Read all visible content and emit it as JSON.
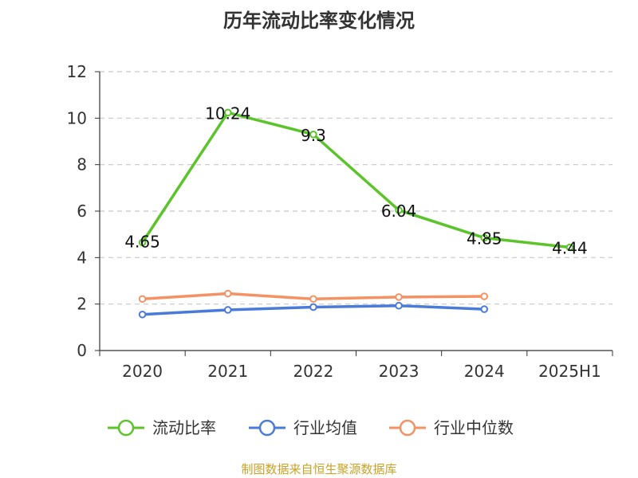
{
  "chart_data": {
    "type": "line",
    "title": "历年流动比率变化情况",
    "categories": [
      "2020",
      "2021",
      "2022",
      "2023",
      "2024",
      "2025H1"
    ],
    "ylim": [
      0,
      12
    ],
    "yticks": [
      "0",
      "2",
      "4",
      "6",
      "8",
      "10",
      "12"
    ],
    "grid": true,
    "legend_position": "bottom",
    "series": [
      {
        "name": "流动比率",
        "color": "#5bc42a",
        "values": [
          4.65,
          10.24,
          9.3,
          6.04,
          4.85,
          4.44
        ],
        "labels": [
          "4.65",
          "10.24",
          "9.3",
          "6.04",
          "4.85",
          "4.44"
        ]
      },
      {
        "name": "行业均值",
        "color": "#4b7bd8",
        "values": [
          1.55,
          1.75,
          1.87,
          1.93,
          1.78,
          null
        ]
      },
      {
        "name": "行业中位数",
        "color": "#f59263",
        "values": [
          2.22,
          2.45,
          2.22,
          2.3,
          2.33,
          null
        ]
      }
    ]
  },
  "footer": {
    "source": "制图数据来自恒生聚源数据库",
    "color": "#c9a227"
  }
}
